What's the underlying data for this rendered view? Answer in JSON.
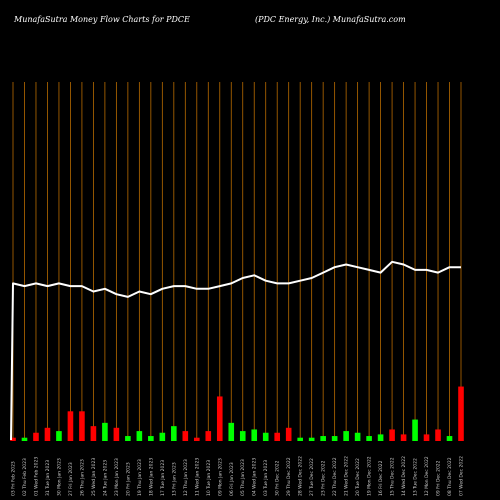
{
  "header": {
    "left_title": "MunafaSutra  Money Flow  Charts for PDCE",
    "right_title": "(PDC Energy,  Inc.) MunafaSutra.com"
  },
  "colors": {
    "background": "#000000",
    "gridline": "#b86b00",
    "line": "#ffffff",
    "up_bar": "#00ff00",
    "down_bar": "#ff0000"
  },
  "chart_data": {
    "type": "bar",
    "title": "MunafaSutra  Money Flow  Charts for PDCE",
    "categories": [
      "03 Fri Feb 2023",
      "02 Thu Feb 2023",
      "01 Wed Feb 2023",
      "31 Tue Jan 2023",
      "30 Mon Jan 2023",
      "27 Fri Jan 2023",
      "26 Thu Jan 2023",
      "25 Wed Jan 2023",
      "24 Tue Jan 2023",
      "23 Mon Jan 2023",
      "20 Fri Jan 2023",
      "19 Thu Jan 2023",
      "18 Wed Jan 2023",
      "17 Tue Jan 2023",
      "13 Fri Jan 2023",
      "12 Thu Jan 2023",
      "11 Wed Jan 2023",
      "10 Tue Jan 2023",
      "09 Mon Jan 2023",
      "06 Fri Jan 2023",
      "05 Thu Jan 2023",
      "04 Wed Jan 2023",
      "03 Tue Jan 2023",
      "30 Fri Dec 2022",
      "29 Thu Dec 2022",
      "28 Wed Dec 2022",
      "27 Tue Dec 2022",
      "23 Fri Dec 2022",
      "22 Thu Dec 2022",
      "21 Wed Dec 2022",
      "20 Tue Dec 2022",
      "19 Mon Dec 2022",
      "16 Fri Dec 2022",
      "15 Thu Dec 2022",
      "14 Wed Dec 2022",
      "13 Tue Dec 2022",
      "12 Mon Dec 2022",
      "09 Fri Dec 2022",
      "08 Thu Dec 2022",
      "07 Wed Dec 2022"
    ],
    "series": [
      {
        "values": [
          2,
          2,
          5,
          8,
          6,
          18,
          18,
          9,
          11,
          8,
          3,
          6,
          3,
          5,
          9,
          6,
          2,
          6,
          27,
          11,
          6,
          7,
          5,
          5,
          8,
          2,
          2,
          3,
          3,
          6,
          5,
          3,
          4,
          7,
          4,
          13,
          4,
          7,
          3,
          33
        ],
        "colors": [
          "red",
          "green",
          "red",
          "red",
          "green",
          "red",
          "red",
          "red",
          "green",
          "red",
          "green",
          "green",
          "green",
          "green",
          "green",
          "red",
          "red",
          "red",
          "red",
          "green",
          "green",
          "green",
          "green",
          "red",
          "red",
          "green",
          "green",
          "green",
          "green",
          "green",
          "green",
          "green",
          "green",
          "red",
          "red",
          "green",
          "red",
          "red",
          "green",
          "red"
        ]
      },
      {
        "values": [
          58,
          57,
          58,
          57,
          58,
          57,
          57,
          55,
          56,
          54,
          53,
          55,
          54,
          56,
          57,
          57,
          56,
          56,
          57,
          58,
          60,
          61,
          59,
          58,
          58,
          59,
          60,
          62,
          64,
          65,
          64,
          63,
          62,
          66,
          65,
          63,
          63,
          62,
          64,
          64
        ]
      }
    ],
    "ylim": [
      0,
      100
    ],
    "grid": true
  }
}
